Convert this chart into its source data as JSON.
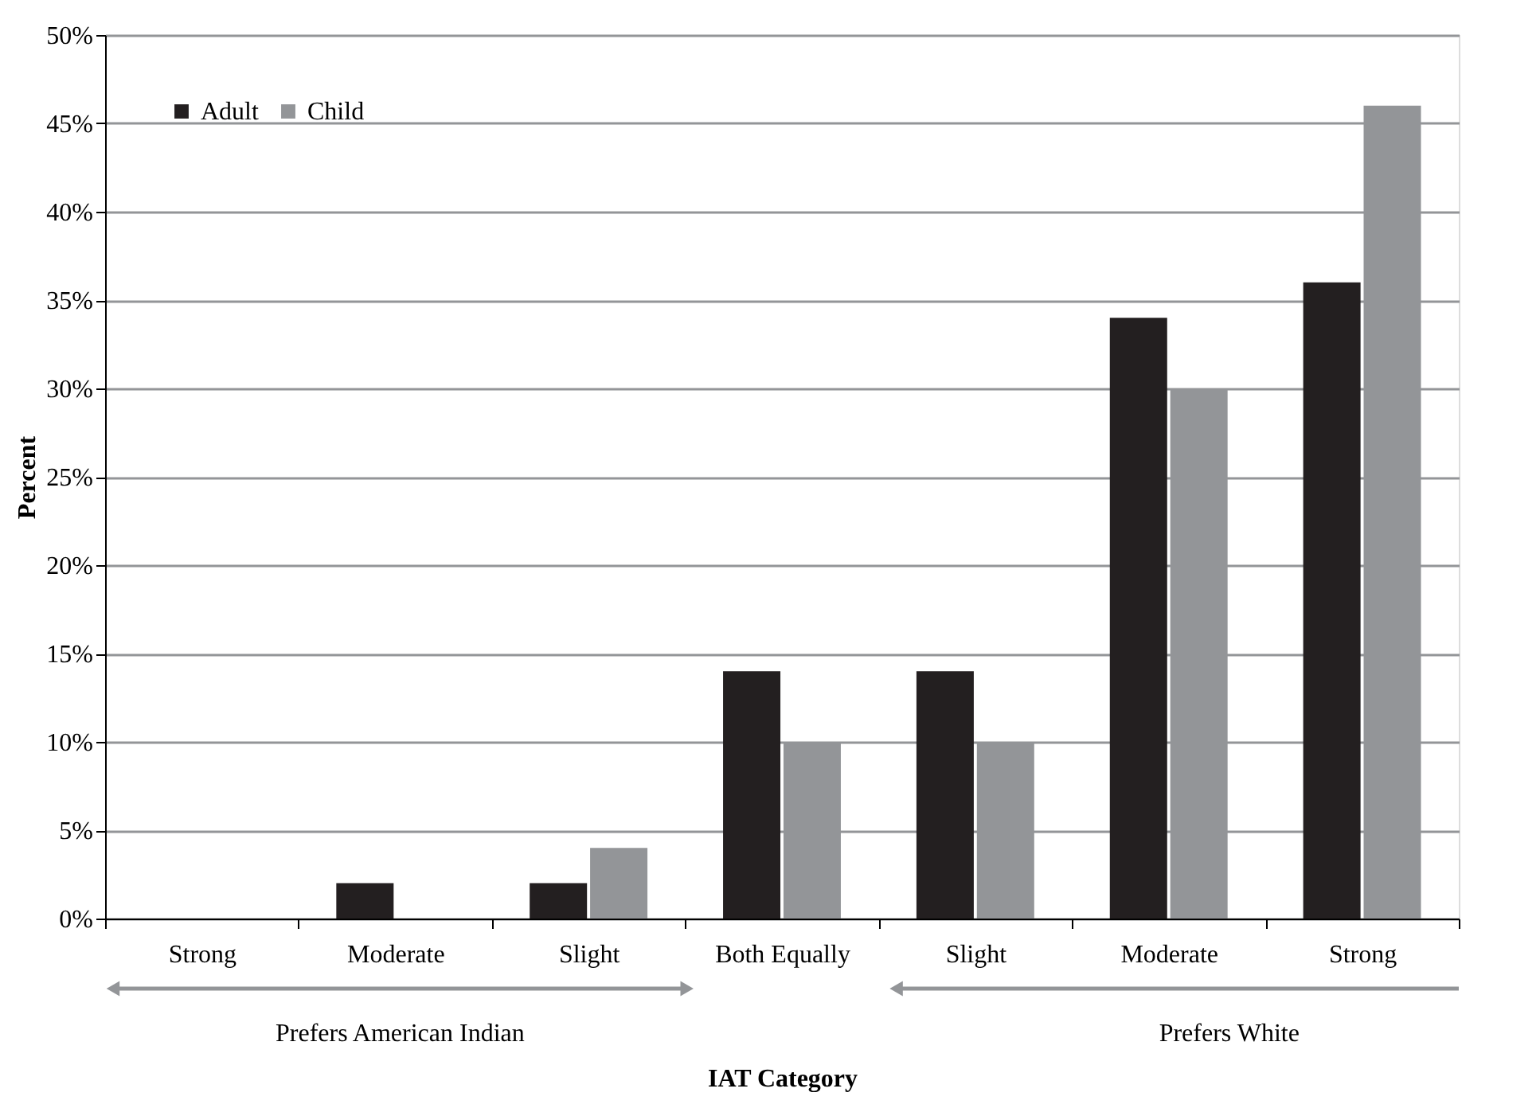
{
  "chart_data": {
    "type": "bar",
    "xlabel": "IAT Category",
    "ylabel": "Percent",
    "categories": [
      "Strong",
      "Moderate",
      "Slight",
      "Both Equally",
      "Slight",
      "Moderate",
      "Strong"
    ],
    "series": [
      {
        "name": "Adult",
        "color": "#231f20",
        "values": [
          0,
          2,
          2,
          14,
          14,
          34,
          36
        ]
      },
      {
        "name": "Child",
        "color": "#939598",
        "values": [
          0,
          0,
          4,
          10,
          10,
          30,
          46
        ]
      }
    ],
    "ylim": [
      0,
      50
    ],
    "yticks": [
      {
        "value": 0,
        "label": "0%"
      },
      {
        "value": 5,
        "label": "5%"
      },
      {
        "value": 10,
        "label": "10%"
      },
      {
        "value": 15,
        "label": "15%"
      },
      {
        "value": 20,
        "label": "20%"
      },
      {
        "value": 25,
        "label": "25%"
      },
      {
        "value": 30,
        "label": "30%"
      },
      {
        "value": 35,
        "label": "35%"
      },
      {
        "value": 40,
        "label": "40%"
      },
      {
        "value": 45,
        "label": "45%"
      },
      {
        "value": 50,
        "label": "50%"
      }
    ],
    "annotations": [
      "Prefers American Indian",
      "Prefers White"
    ],
    "grid": "y",
    "legend": "top left"
  }
}
